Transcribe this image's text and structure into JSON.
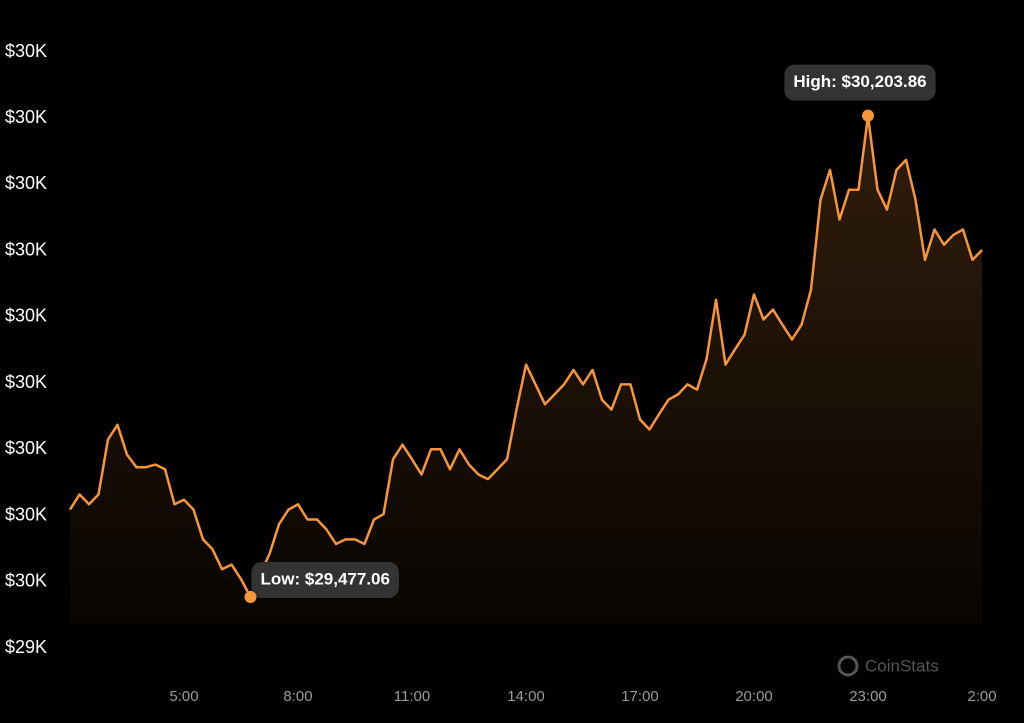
{
  "chart_data": {
    "type": "line",
    "categories": [
      null,
      null,
      null,
      null,
      null,
      null,
      null,
      null,
      null,
      null,
      null,
      null,
      "5:00",
      null,
      null,
      null,
      null,
      null,
      null,
      null,
      null,
      null,
      null,
      null,
      "8:00",
      null,
      null,
      null,
      null,
      null,
      null,
      null,
      null,
      null,
      null,
      null,
      "11:00",
      null,
      null,
      null,
      null,
      null,
      null,
      null,
      null,
      null,
      null,
      null,
      "14:00",
      null,
      null,
      null,
      null,
      null,
      null,
      null,
      null,
      null,
      null,
      null,
      "17:00",
      null,
      null,
      null,
      null,
      null,
      null,
      null,
      null,
      null,
      null,
      null,
      "20:00",
      null,
      null,
      null,
      null,
      null,
      null,
      null,
      null,
      null,
      null,
      null,
      "23:00",
      null,
      null,
      null,
      null,
      null,
      null,
      null,
      null,
      null,
      null,
      null,
      "2:00"
    ],
    "values": [
      29609,
      29632,
      29617,
      29632,
      29715,
      29737,
      29692,
      29673,
      29673,
      29677,
      29670,
      29617,
      29624,
      29609,
      29564,
      29549,
      29519,
      29526,
      29504,
      29477.06,
      29511,
      29542,
      29587,
      29609,
      29617,
      29594,
      29594,
      29579,
      29557,
      29564,
      29564,
      29557,
      29594,
      29602,
      29685,
      29707,
      29685,
      29662,
      29700,
      29700,
      29670,
      29700,
      29677,
      29662,
      29655,
      29670,
      29685,
      29760,
      29828,
      29798,
      29768,
      29783,
      29798,
      29820,
      29798,
      29820,
      29775,
      29760,
      29798,
      29798,
      29745,
      29730,
      29753,
      29775,
      29783,
      29798,
      29790,
      29836,
      29926,
      29828,
      29851,
      29873,
      29934,
      29896,
      29911,
      29888,
      29866,
      29888,
      29941,
      30077,
      30122,
      30047,
      30092,
      30092,
      30203.86,
      30092,
      30062,
      30122,
      30137,
      30077,
      29986,
      30032,
      30009,
      30024,
      30032,
      29986,
      30001
    ],
    "value_labels": [
      null,
      null,
      null,
      null,
      null,
      null,
      null,
      null,
      null,
      null,
      null,
      null,
      null,
      null,
      null,
      null,
      null,
      null,
      null,
      "Low: $29,477.06",
      null,
      null,
      null,
      null,
      null,
      null,
      null,
      null,
      null,
      null,
      null,
      null,
      null,
      null,
      null,
      null,
      null,
      null,
      null,
      null,
      null,
      null,
      null,
      null,
      null,
      null,
      null,
      null,
      null,
      null,
      null,
      null,
      null,
      null,
      null,
      null,
      null,
      null,
      null,
      null,
      null,
      null,
      null,
      null,
      null,
      null,
      null,
      null,
      null,
      null,
      null,
      null,
      null,
      null,
      null,
      null,
      null,
      null,
      null,
      null,
      null,
      null,
      null,
      null,
      "High: $30,203.86",
      null,
      null,
      null,
      null,
      null,
      null,
      null,
      null,
      null,
      null,
      null,
      null
    ],
    "color": "#f7953b",
    "ylim": [
      29400,
      30300
    ],
    "yticks": [
      {
        "value": 29400,
        "label": "$29K"
      },
      {
        "value": 29500,
        "label": "$30K"
      },
      {
        "value": 29600,
        "label": "$30K"
      },
      {
        "value": 29700,
        "label": "$30K"
      },
      {
        "value": 29800,
        "label": "$30K"
      },
      {
        "value": 29900,
        "label": "$30K"
      },
      {
        "value": 30000,
        "label": "$30K"
      },
      {
        "value": 30100,
        "label": "$30K"
      },
      {
        "value": 30200,
        "label": "$30K"
      },
      {
        "value": 30300,
        "label": "$30K"
      }
    ],
    "watermark": "CoinStats"
  }
}
